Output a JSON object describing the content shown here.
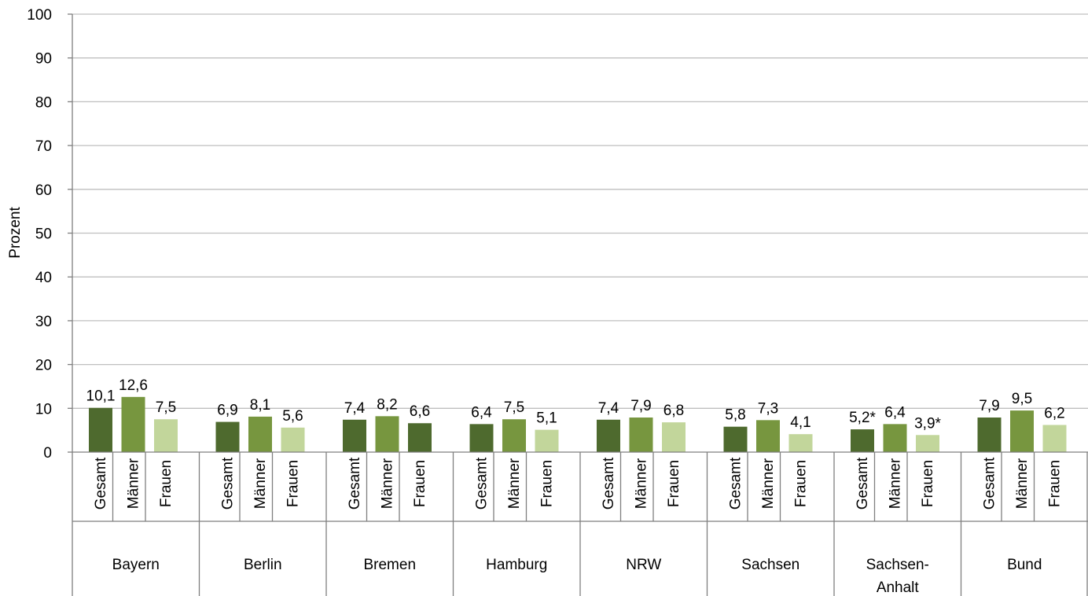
{
  "chart_data": {
    "type": "bar",
    "ylabel": "Prozent",
    "ylim": [
      0,
      100
    ],
    "yticks": [
      0,
      10,
      20,
      30,
      40,
      50,
      60,
      70,
      80,
      90,
      100
    ],
    "grid": true,
    "groups": [
      {
        "name": "Bayern",
        "name_lines": [
          "Bayern"
        ],
        "bars": [
          {
            "category": "Gesamt",
            "value": 10.1,
            "label": "10,1"
          },
          {
            "category": "Männer",
            "value": 12.6,
            "label": "12,6"
          },
          {
            "category": "Frauen",
            "value": 7.5,
            "label": "7,5"
          }
        ]
      },
      {
        "name": "Berlin",
        "name_lines": [
          "Berlin"
        ],
        "bars": [
          {
            "category": "Gesamt",
            "value": 6.9,
            "label": "6,9"
          },
          {
            "category": "Männer",
            "value": 8.1,
            "label": "8,1"
          },
          {
            "category": "Frauen",
            "value": 5.6,
            "label": "5,6"
          }
        ]
      },
      {
        "name": "Bremen",
        "name_lines": [
          "Bremen"
        ],
        "bars": [
          {
            "category": "Gesamt",
            "value": 7.4,
            "label": "7,4"
          },
          {
            "category": "Männer",
            "value": 8.2,
            "label": "8,2"
          },
          {
            "category": "Frauen",
            "value": 6.6,
            "label": "6,6",
            "color": "#4e6a2e"
          }
        ]
      },
      {
        "name": "Hamburg",
        "name_lines": [
          "Hamburg"
        ],
        "bars": [
          {
            "category": "Gesamt",
            "value": 6.4,
            "label": "6,4"
          },
          {
            "category": "Männer",
            "value": 7.5,
            "label": "7,5"
          },
          {
            "category": "Frauen",
            "value": 5.1,
            "label": "5,1"
          }
        ]
      },
      {
        "name": "NRW",
        "name_lines": [
          "NRW"
        ],
        "bars": [
          {
            "category": "Gesamt",
            "value": 7.4,
            "label": "7,4"
          },
          {
            "category": "Männer",
            "value": 7.9,
            "label": "7,9"
          },
          {
            "category": "Frauen",
            "value": 6.8,
            "label": "6,8"
          }
        ]
      },
      {
        "name": "Sachsen",
        "name_lines": [
          "Sachsen"
        ],
        "bars": [
          {
            "category": "Gesamt",
            "value": 5.8,
            "label": "5,8"
          },
          {
            "category": "Männer",
            "value": 7.3,
            "label": "7,3"
          },
          {
            "category": "Frauen",
            "value": 4.1,
            "label": "4,1"
          }
        ]
      },
      {
        "name": "Sachsen-Anhalt",
        "name_lines": [
          "Sachsen-",
          "Anhalt"
        ],
        "bars": [
          {
            "category": "Gesamt",
            "value": 5.2,
            "label": "5,2*"
          },
          {
            "category": "Männer",
            "value": 6.4,
            "label": "6,4"
          },
          {
            "category": "Frauen",
            "value": 3.9,
            "label": "3,9*"
          }
        ]
      },
      {
        "name": "Bund",
        "name_lines": [
          "Bund"
        ],
        "bars": [
          {
            "category": "Gesamt",
            "value": 7.9,
            "label": "7,9"
          },
          {
            "category": "Männer",
            "value": 9.5,
            "label": "9,5"
          },
          {
            "category": "Frauen",
            "value": 6.2,
            "label": "6,2"
          }
        ]
      }
    ]
  },
  "colors": {
    "Gesamt": "#4e6a2e",
    "Männer": "#77963f",
    "Frauen": "#c2d69b",
    "grid": "#bfbfbf",
    "axis": "#7f7f7f"
  }
}
